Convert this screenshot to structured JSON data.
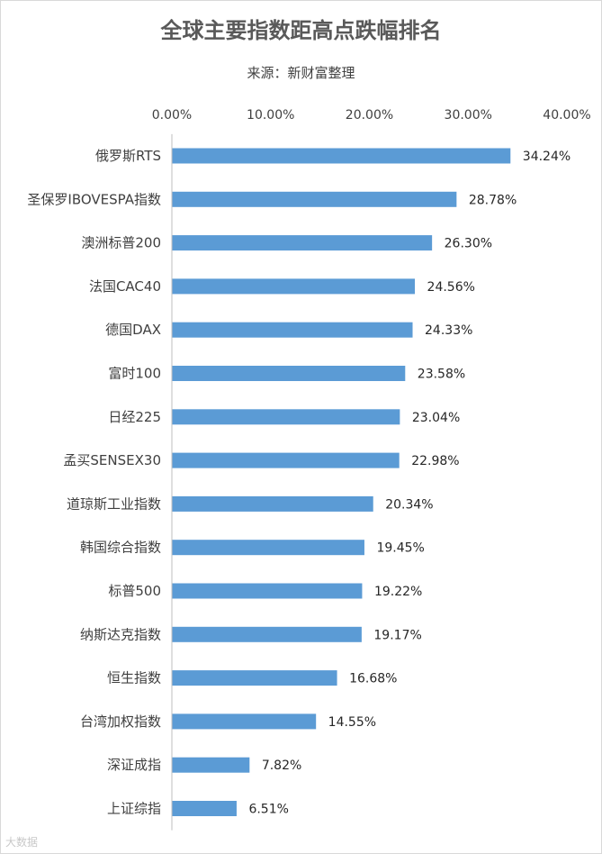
{
  "chart_data": {
    "type": "bar",
    "orientation": "horizontal",
    "title": "全球主要指数距高点跌幅排名",
    "subtitle": "来源：新财富整理",
    "categories": [
      "俄罗斯RTS",
      "圣保罗IBOVESPA指数",
      "澳洲标普200",
      "法国CAC40",
      "德国DAX",
      "富时100",
      "日经225",
      "孟买SENSEX30",
      "道琼斯工业指数",
      "韩国综合指数",
      "标普500",
      "纳斯达克指数",
      "恒生指数",
      "台湾加权指数",
      "深证成指",
      "上证综指"
    ],
    "values": [
      34.24,
      28.78,
      26.3,
      24.56,
      24.33,
      23.58,
      23.04,
      22.98,
      20.34,
      19.45,
      19.22,
      19.17,
      16.68,
      14.55,
      7.82,
      6.51
    ],
    "data_labels": [
      "34.24%",
      "28.78%",
      "26.30%",
      "24.56%",
      "24.33%",
      "23.58%",
      "23.04%",
      "22.98%",
      "20.34%",
      "19.45%",
      "19.22%",
      "19.17%",
      "16.68%",
      "14.55%",
      "7.82%",
      "6.51%"
    ],
    "x_ticks": [
      "0.00%",
      "10.00%",
      "20.00%",
      "30.00%",
      "40.00%"
    ],
    "x_tick_values": [
      0,
      10,
      20,
      30,
      40
    ],
    "xlim": [
      0,
      40
    ],
    "x_axis_position": "top",
    "grid": false,
    "legend": "none",
    "bar_color": "#5b9bd5"
  },
  "watermark": "大数据"
}
